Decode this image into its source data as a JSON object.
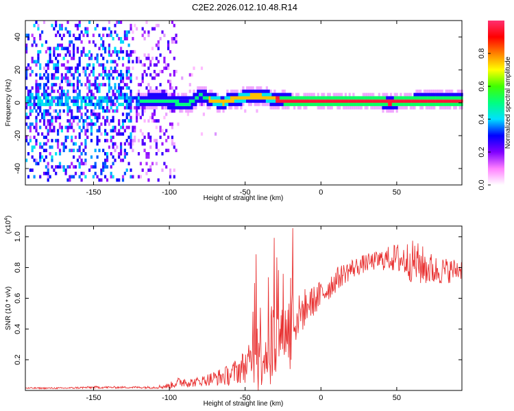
{
  "title": "C2E2.2026.012.10.48.R14",
  "chart_data": [
    {
      "type": "heatmap",
      "xlabel": "Height of straight line (km)",
      "ylabel": "Frequency (Hz)",
      "xlim": [
        -195,
        93
      ],
      "ylim": [
        -50,
        50
      ],
      "x_ticks": [
        -150,
        -100,
        -50,
        0,
        50
      ],
      "y_ticks": [
        -40,
        -20,
        0,
        20,
        40
      ],
      "colorbar": {
        "label": "Normalized spectral amplitude",
        "range": [
          0,
          1
        ],
        "ticks": [
          "0.0",
          "0.2",
          "0.4",
          "0.6",
          "0.8"
        ],
        "colors": [
          "#ffffff",
          "#ff80ff",
          "#8000ff",
          "#0000ff",
          "#00e0ff",
          "#00ff80",
          "#40ff00",
          "#ffff00",
          "#ff8000",
          "#ff0000",
          "#ff3070"
        ]
      },
      "ridge": {
        "x": [
          -195,
          -150,
          -130,
          -115,
          -105,
          -95,
          -90,
          -85,
          -80,
          -75,
          -70,
          -65,
          -60,
          -55,
          -50,
          -45,
          -40,
          -35,
          -30,
          -25,
          -20,
          -10,
          0,
          20,
          40,
          45,
          50,
          60,
          70,
          80,
          93
        ],
        "y": [
          0,
          0,
          0,
          0,
          0.5,
          -1,
          -2,
          0,
          4,
          1,
          0,
          -1,
          1,
          1.5,
          2.5,
          3,
          3,
          2,
          1,
          0.5,
          0,
          0,
          0,
          0,
          0,
          -1,
          0,
          0,
          0.5,
          0,
          0.5
        ]
      }
    },
    {
      "type": "line",
      "xlabel": "Height of straight line (km)",
      "ylabel": "SNR (10 * v/v)",
      "multiplier": "(x10",
      "multiplier_exp": "4",
      "multiplier_close": ")",
      "xlim": [
        -195,
        93
      ],
      "ylim": [
        0,
        1.07
      ],
      "x_ticks": [
        -150,
        -100,
        -50,
        0,
        50
      ],
      "y_ticks": [
        0.2,
        0.4,
        0.6,
        0.8,
        1.0
      ],
      "color": "#e83030",
      "x": [
        -195,
        -170,
        -150,
        -130,
        -110,
        -100,
        -95,
        -90,
        -85,
        -80,
        -75,
        -70,
        -65,
        -60,
        -55,
        -50,
        -45,
        -42,
        -40,
        -38,
        -35,
        -32,
        -30,
        -28,
        -25,
        -22,
        -20,
        -18,
        -15,
        -12,
        -10,
        -5,
        0,
        5,
        10,
        15,
        20,
        25,
        30,
        35,
        40,
        45,
        50,
        55,
        60,
        65,
        70,
        75,
        80,
        85,
        93
      ],
      "y": [
        0.015,
        0.015,
        0.02,
        0.02,
        0.02,
        0.03,
        0.05,
        0.06,
        0.05,
        0.06,
        0.07,
        0.08,
        0.09,
        0.1,
        0.13,
        0.16,
        0.2,
        0.25,
        0.3,
        0.24,
        0.26,
        0.3,
        0.32,
        0.34,
        0.36,
        0.4,
        0.43,
        0.46,
        0.48,
        0.52,
        0.55,
        0.58,
        0.62,
        0.67,
        0.72,
        0.76,
        0.79,
        0.81,
        0.83,
        0.84,
        0.85,
        0.86,
        0.86,
        0.85,
        0.84,
        0.82,
        0.8,
        0.78,
        0.78,
        0.78,
        0.79
      ],
      "noise_amp": [
        0.005,
        0.005,
        0.008,
        0.006,
        0.008,
        0.02,
        0.03,
        0.04,
        0.03,
        0.03,
        0.04,
        0.05,
        0.06,
        0.07,
        0.09,
        0.11,
        0.13,
        0.35,
        0.3,
        0.2,
        0.2,
        0.35,
        0.28,
        0.2,
        0.18,
        0.2,
        0.45,
        0.2,
        0.14,
        0.14,
        0.12,
        0.1,
        0.1,
        0.09,
        0.08,
        0.07,
        0.07,
        0.06,
        0.06,
        0.06,
        0.07,
        0.08,
        0.1,
        0.12,
        0.14,
        0.14,
        0.12,
        0.1,
        0.09,
        0.08,
        0.07
      ]
    }
  ]
}
